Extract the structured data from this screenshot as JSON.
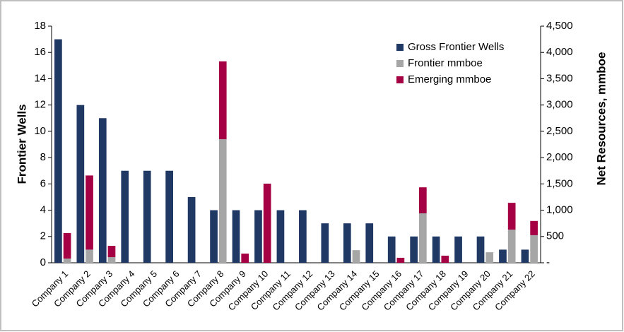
{
  "chart_data": {
    "type": "bar",
    "y_label": "Frontier Wells",
    "y2_label": "Net Resources, mmboe",
    "categories": [
      "Company 1",
      "Company 2",
      "Company 3",
      "Company 4",
      "Company 5",
      "Company 6",
      "Company 7",
      "Company 8",
      "Company 9",
      "Company 10",
      "Company 11",
      "Company 12",
      "Company 13",
      "Company 14",
      "Company 15",
      "Company 16",
      "Company 17",
      "Company 18",
      "Company 19",
      "Company 20",
      "Company 21",
      "Company 22"
    ],
    "series": [
      {
        "name": "Gross Frontier Wells",
        "color": "#1f3864",
        "axis": "y",
        "values": [
          17,
          12,
          11,
          7,
          7,
          7,
          5,
          4,
          4,
          4,
          4,
          4,
          3,
          3,
          3,
          2,
          2,
          2,
          2,
          2,
          1,
          1
        ]
      },
      {
        "name": "Frontier mmboe",
        "color": "#a6a6a6",
        "axis": "y2",
        "values": [
          80,
          250,
          107,
          0,
          0,
          0,
          0,
          2350,
          0,
          0,
          0,
          0,
          0,
          240,
          0,
          0,
          940,
          0,
          0,
          200,
          630,
          525
        ]
      },
      {
        "name": "Emerging mmboe",
        "color": "#a50044",
        "axis": "y2",
        "values": [
          485,
          1410,
          215,
          0,
          0,
          0,
          0,
          1480,
          175,
          1505,
          0,
          0,
          0,
          0,
          0,
          95,
          495,
          135,
          0,
          0,
          510,
          270
        ]
      }
    ],
    "ylim": [
      0,
      18
    ],
    "yticks": [
      0,
      2,
      4,
      6,
      8,
      10,
      12,
      14,
      16,
      18
    ],
    "y2lim": [
      0,
      4500
    ],
    "y2ticks": [
      {
        "value": 0,
        "label": "-"
      },
      {
        "value": 500,
        "label": "500"
      },
      {
        "value": 1000,
        "label": "1,000"
      },
      {
        "value": 1500,
        "label": "1,500"
      },
      {
        "value": 2000,
        "label": "2,000"
      },
      {
        "value": 2500,
        "label": "2,500"
      },
      {
        "value": 3000,
        "label": "3,000"
      },
      {
        "value": 3500,
        "label": "3,500"
      },
      {
        "value": 4000,
        "label": "4,000"
      },
      {
        "value": 4500,
        "label": "4,500"
      }
    ],
    "legend": "top-right"
  }
}
